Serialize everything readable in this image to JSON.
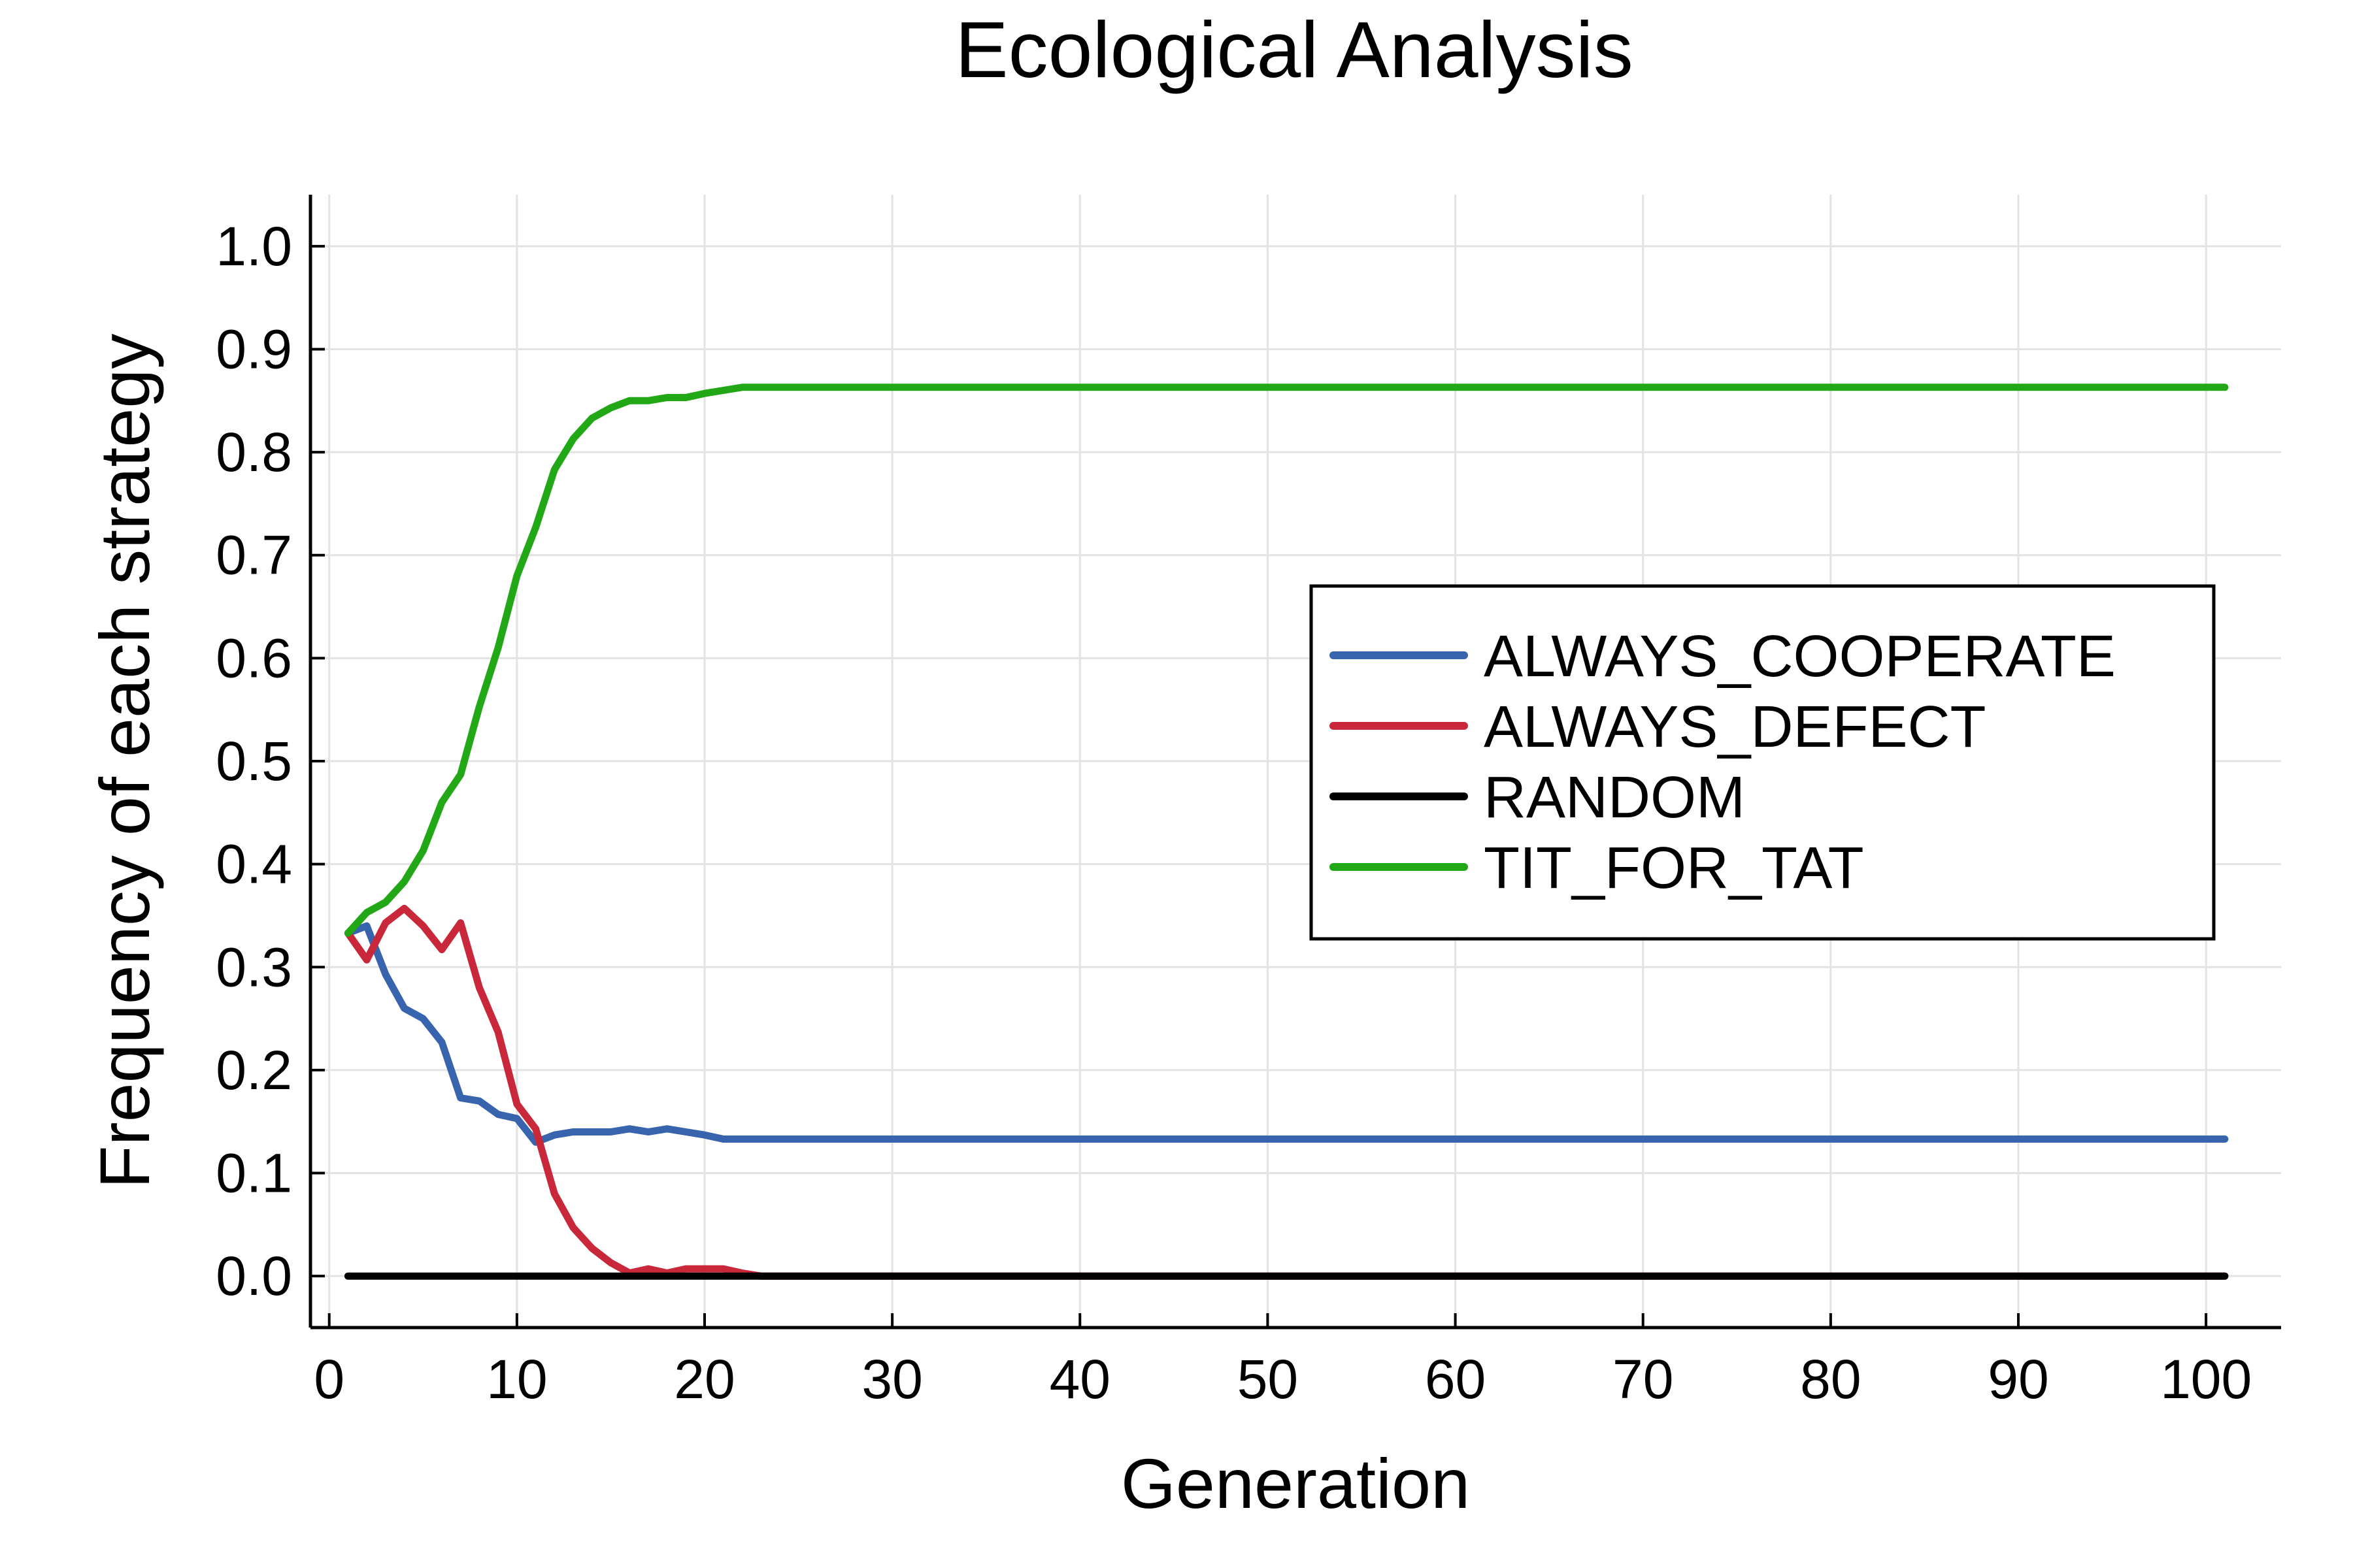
{
  "chart_data": {
    "type": "line",
    "title": "Ecological Analysis",
    "xlabel": "Generation",
    "ylabel": "Frequency of each strategy",
    "xlim": [
      -1,
      104
    ],
    "ylim": [
      -0.05,
      1.05
    ],
    "xticks": [
      0,
      10,
      20,
      30,
      40,
      50,
      60,
      70,
      80,
      90,
      100
    ],
    "xtick_labels": [
      "0",
      "10",
      "20",
      "30",
      "40",
      "50",
      "60",
      "70",
      "80",
      "90",
      "100"
    ],
    "yticks": [
      0.0,
      0.1,
      0.2,
      0.3,
      0.4,
      0.5,
      0.6,
      0.7,
      0.8,
      0.9,
      1.0
    ],
    "ytick_labels": [
      "0.0",
      "0.1",
      "0.2",
      "0.3",
      "0.4",
      "0.5",
      "0.6",
      "0.7",
      "0.8",
      "0.9",
      "1.0"
    ],
    "grid": true,
    "legend_position": "right",
    "series": [
      {
        "name": "ALWAYS_COOPERATE",
        "color": "#3863ad",
        "points": [
          [
            1,
            0.333
          ],
          [
            2,
            0.34
          ],
          [
            3,
            0.293
          ],
          [
            4,
            0.26
          ],
          [
            5,
            0.25
          ],
          [
            6,
            0.227
          ],
          [
            7,
            0.173
          ],
          [
            8,
            0.17
          ],
          [
            9,
            0.157
          ],
          [
            10,
            0.153
          ],
          [
            11,
            0.13
          ],
          [
            12,
            0.137
          ],
          [
            13,
            0.14
          ],
          [
            14,
            0.14
          ],
          [
            15,
            0.14
          ],
          [
            16,
            0.143
          ],
          [
            17,
            0.14
          ],
          [
            18,
            0.143
          ],
          [
            19,
            0.14
          ],
          [
            20,
            0.137
          ],
          [
            21,
            0.133
          ],
          [
            101,
            0.133
          ]
        ]
      },
      {
        "name": "ALWAYS_DEFECT",
        "color": "#c8283a",
        "points": [
          [
            1,
            0.333
          ],
          [
            2,
            0.307
          ],
          [
            3,
            0.343
          ],
          [
            4,
            0.357
          ],
          [
            5,
            0.34
          ],
          [
            6,
            0.317
          ],
          [
            7,
            0.343
          ],
          [
            8,
            0.28
          ],
          [
            9,
            0.237
          ],
          [
            10,
            0.167
          ],
          [
            11,
            0.143
          ],
          [
            12,
            0.08
          ],
          [
            13,
            0.047
          ],
          [
            14,
            0.027
          ],
          [
            15,
            0.013
          ],
          [
            16,
            0.003
          ],
          [
            17,
            0.007
          ],
          [
            18,
            0.003
          ],
          [
            19,
            0.007
          ],
          [
            20,
            0.007
          ],
          [
            21,
            0.007
          ],
          [
            22,
            0.003
          ],
          [
            23,
            0.0
          ],
          [
            101,
            0.0
          ]
        ]
      },
      {
        "name": "RANDOM",
        "color": "#000000",
        "points": [
          [
            1,
            0.0
          ],
          [
            101,
            0.0
          ]
        ]
      },
      {
        "name": "TIT_FOR_TAT",
        "color": "#22a816",
        "points": [
          [
            1,
            0.333
          ],
          [
            2,
            0.353
          ],
          [
            3,
            0.363
          ],
          [
            4,
            0.383
          ],
          [
            5,
            0.413
          ],
          [
            6,
            0.46
          ],
          [
            7,
            0.487
          ],
          [
            8,
            0.553
          ],
          [
            9,
            0.61
          ],
          [
            10,
            0.68
          ],
          [
            11,
            0.727
          ],
          [
            12,
            0.783
          ],
          [
            13,
            0.813
          ],
          [
            14,
            0.833
          ],
          [
            15,
            0.843
          ],
          [
            16,
            0.85
          ],
          [
            17,
            0.85
          ],
          [
            18,
            0.853
          ],
          [
            19,
            0.853
          ],
          [
            20,
            0.857
          ],
          [
            21,
            0.86
          ],
          [
            22,
            0.863
          ],
          [
            101,
            0.863
          ]
        ]
      }
    ]
  }
}
